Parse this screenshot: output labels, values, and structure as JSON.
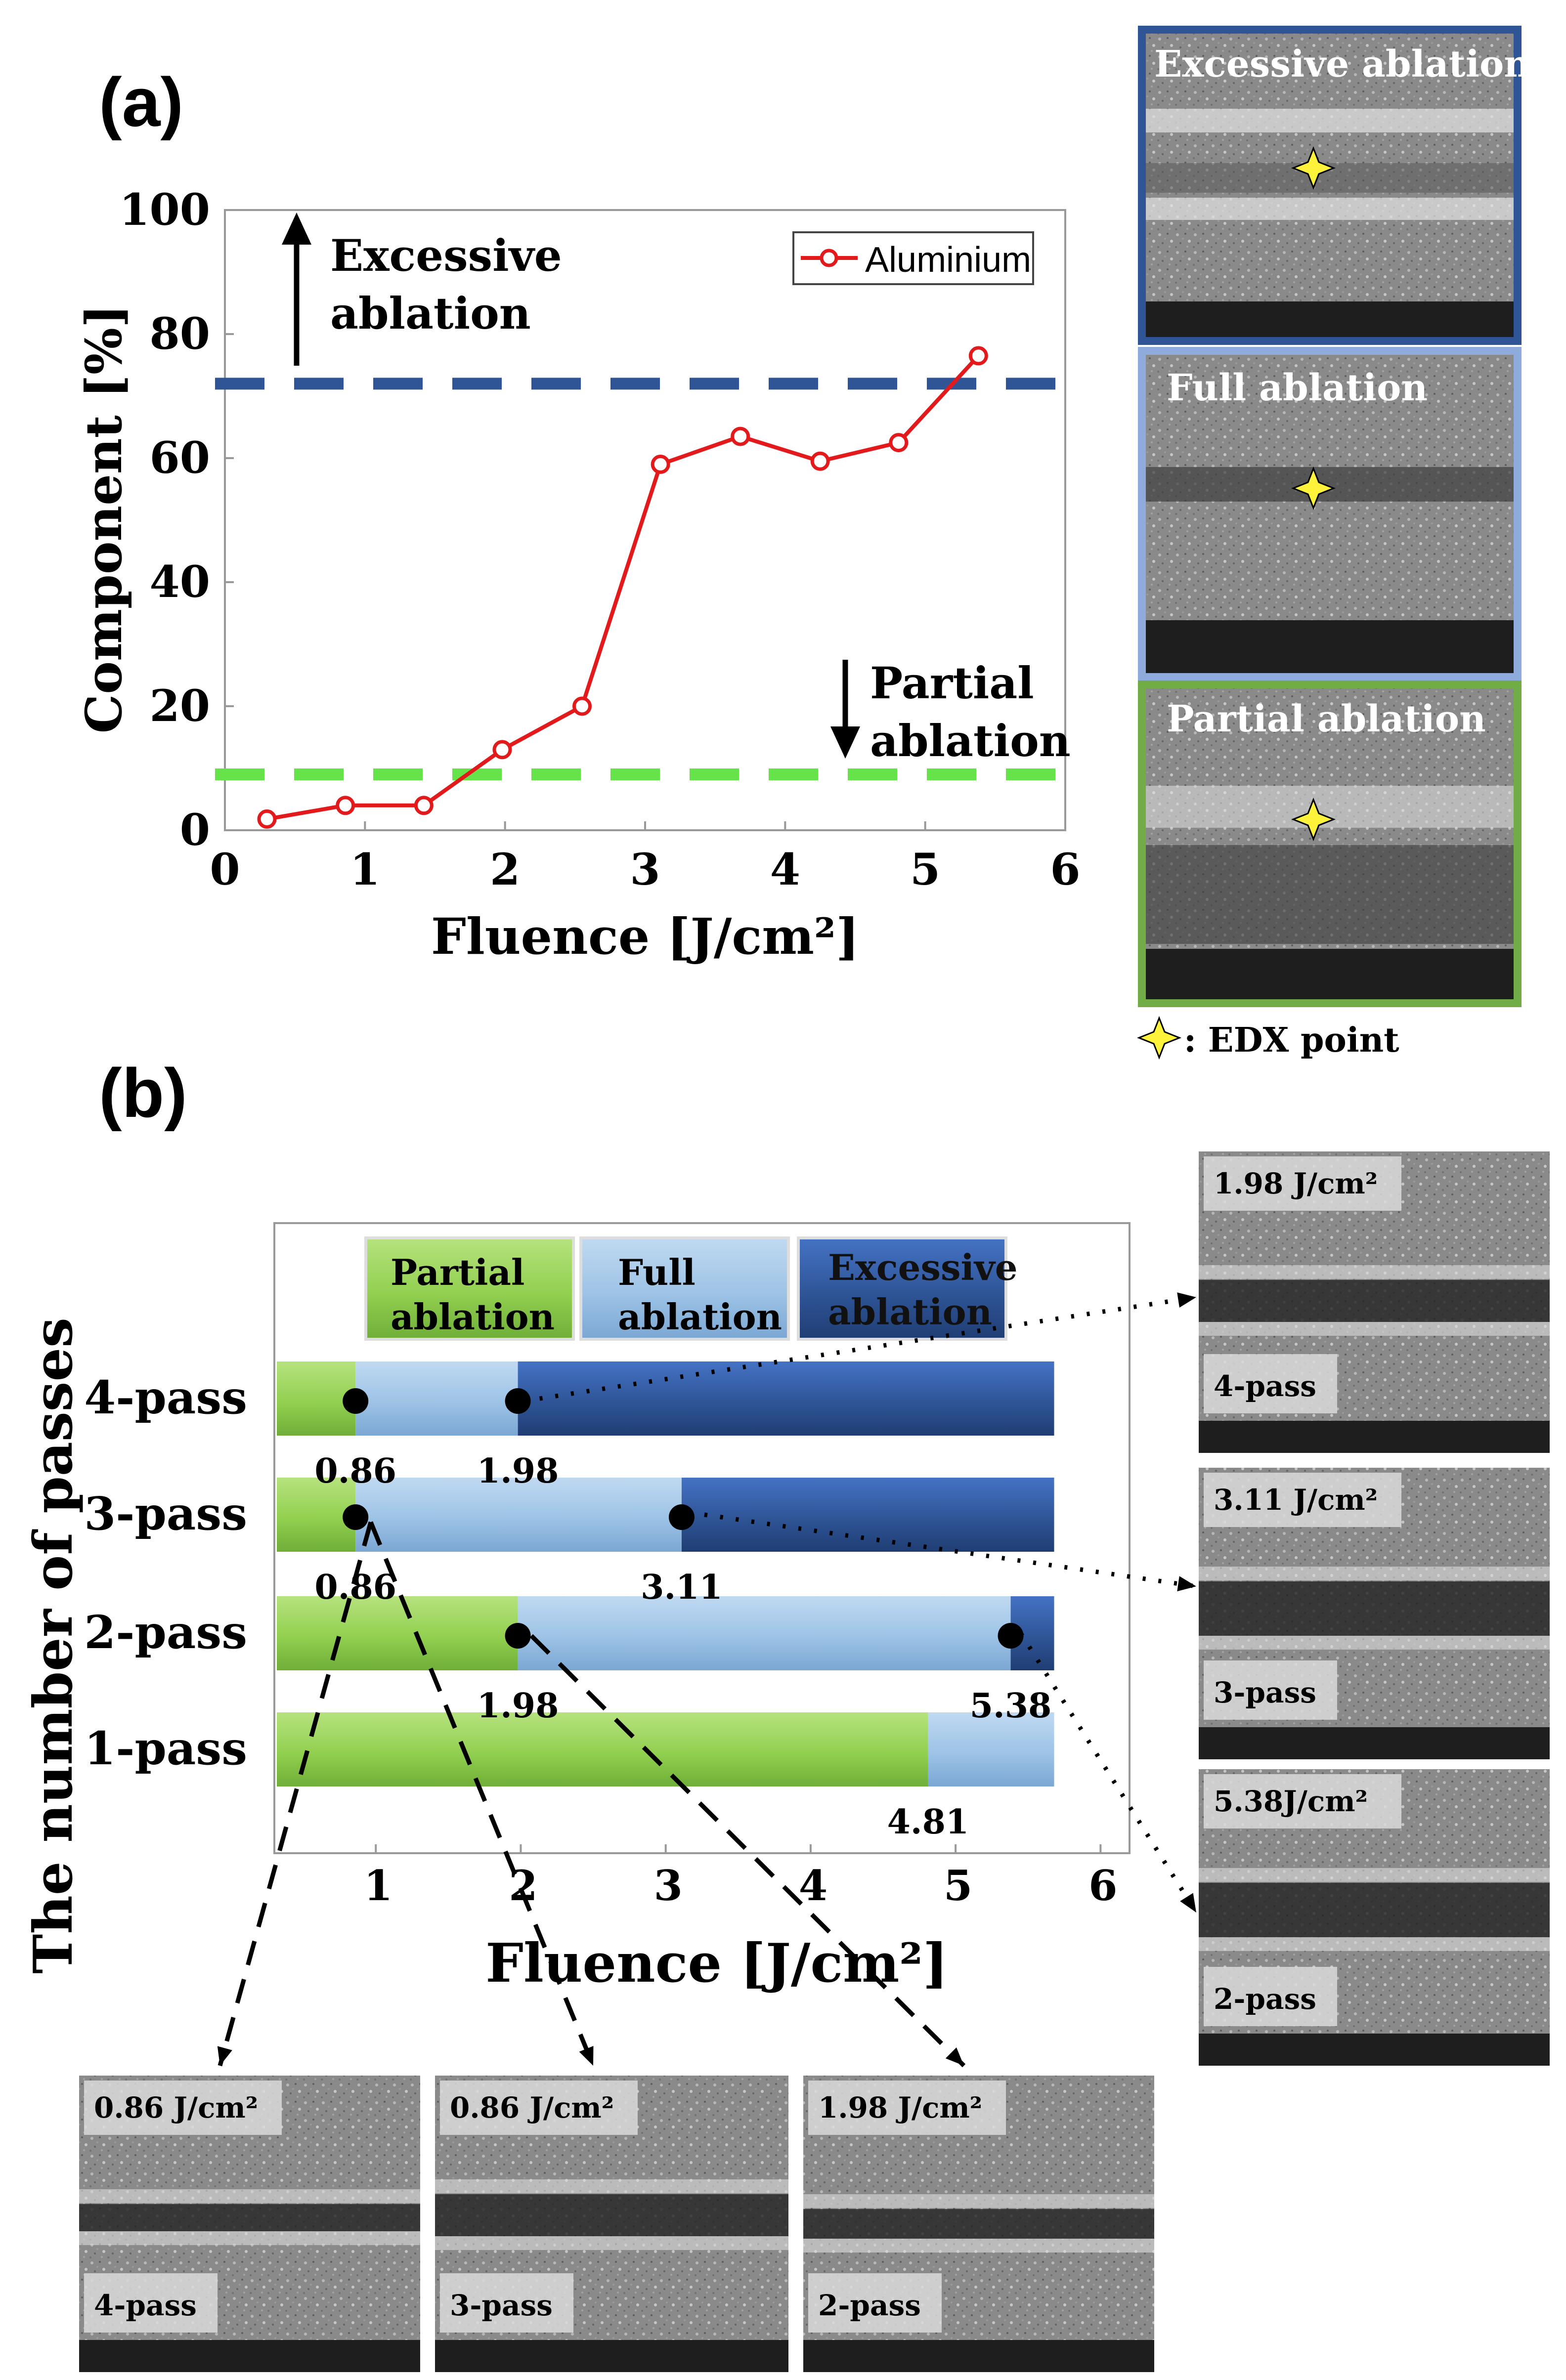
{
  "panel_a": {
    "label": "(a)",
    "excessive_annotation": [
      "Excessive",
      "ablation"
    ],
    "partial_annotation": [
      "Partial",
      "ablation"
    ],
    "edx_legend": ": EDX point",
    "sem_images": [
      {
        "title": "Excessive ablation",
        "border_color": "#2f5597"
      },
      {
        "title": "Full ablation",
        "border_color": "#8faadc"
      },
      {
        "title": "Partial ablation",
        "border_color": "#70ad47"
      }
    ]
  },
  "panel_b": {
    "label": "(b)",
    "sem_images_right": [
      {
        "fluence": "1.98 J/cm²",
        "pass": "4-pass"
      },
      {
        "fluence": "3.11 J/cm²",
        "pass": "3-pass"
      },
      {
        "fluence": "5.38J/cm²",
        "pass": "2-pass"
      }
    ],
    "sem_images_bottom": [
      {
        "fluence": "0.86 J/cm²",
        "pass": "4-pass"
      },
      {
        "fluence": "0.86 J/cm²",
        "pass": "3-pass"
      },
      {
        "fluence": "1.98 J/cm²",
        "pass": "2-pass"
      }
    ]
  },
  "colors": {
    "line": "#e31a1c",
    "excessive_line": "#2f5597",
    "partial_line": "#66e24a",
    "partial_bar": "#92d050",
    "full_bar": "#9dc3e6",
    "excessive_bar": "#2f5597"
  },
  "chart_data": [
    {
      "type": "line",
      "xlabel": "Fluence [J/cm²]",
      "ylabel": "Component [%]",
      "xlim": [
        0,
        6
      ],
      "ylim": [
        0,
        100
      ],
      "xticks": [
        "0",
        "1",
        "2",
        "3",
        "4",
        "5",
        "6"
      ],
      "yticks": [
        "0",
        "20",
        "40",
        "60",
        "80",
        "100"
      ],
      "series": [
        {
          "name": "Aluminium",
          "x": [
            0.3,
            0.86,
            1.42,
            1.98,
            2.55,
            3.11,
            3.68,
            4.25,
            4.81,
            5.38
          ],
          "y": [
            1.8,
            4,
            4,
            13,
            20,
            59,
            63.5,
            59.5,
            62.5,
            76.5
          ]
        }
      ],
      "thresholds": [
        {
          "name": "Excessive ablation",
          "y": 72
        },
        {
          "name": "Partial ablation",
          "y": 9
        }
      ],
      "legend": "top-right"
    },
    {
      "type": "bar",
      "orientation": "horizontal",
      "stacked": true,
      "xlabel": "Fluence [J/cm²]",
      "ylabel": "The number of passes",
      "xlim": [
        0.3,
        6.2
      ],
      "xmax_bar": 5.68,
      "xticks": [
        "1",
        "2",
        "3",
        "4",
        "5",
        "6"
      ],
      "categories": [
        "4-pass",
        "3-pass",
        "2-pass",
        "1-pass"
      ],
      "legend": [
        "Partial ablation",
        "Full ablation",
        "Excessive ablation"
      ],
      "series": [
        {
          "name": "4-pass",
          "partial_end": 0.86,
          "full_end": 1.98,
          "labels": [
            "0.86",
            "1.98"
          ]
        },
        {
          "name": "3-pass",
          "partial_end": 0.86,
          "full_end": 3.11,
          "labels": [
            "0.86",
            "3.11"
          ]
        },
        {
          "name": "2-pass",
          "partial_end": 1.98,
          "full_end": 5.38,
          "labels": [
            "1.98",
            "5.38"
          ]
        },
        {
          "name": "1-pass",
          "partial_end": 4.81,
          "full_end": null,
          "labels": [
            "4.81"
          ]
        }
      ]
    }
  ]
}
